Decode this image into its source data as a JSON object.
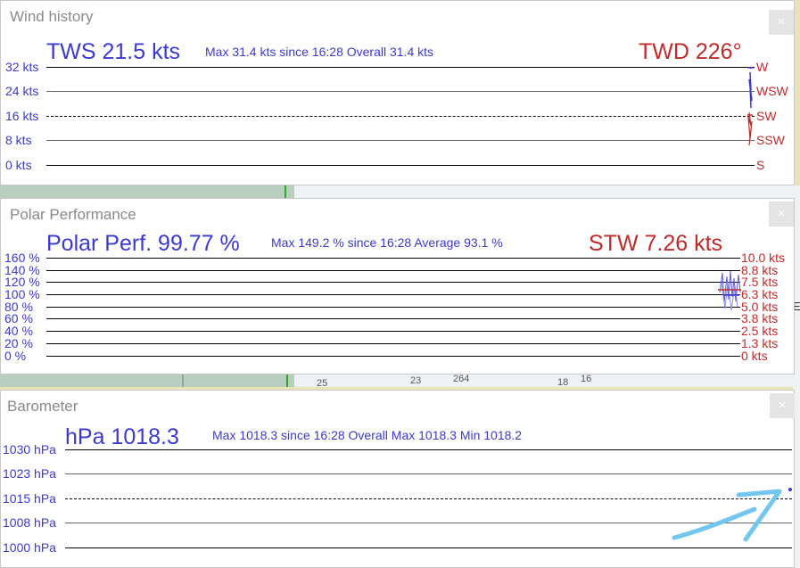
{
  "wind": {
    "title": "Wind history",
    "close_label": "×",
    "tws_label": "TWS 21.5 kts",
    "stats": "Max 31.4 kts since 16:28  Overall 31.4 kts",
    "twd_label": "TWD 226°",
    "left_axis": [
      "32 kts",
      "24 kts",
      "16 kts",
      "8 kts",
      "0 kts"
    ],
    "right_axis": [
      "W",
      "WSW",
      "SW",
      "SSW",
      "S"
    ]
  },
  "polar": {
    "title": "Polar Performance",
    "close_label": "×",
    "perf_label": "Polar Perf. 99.77 %",
    "stats": "Max 149.2 % since 16:28  Average 93.1 %",
    "stw_label": "STW 7.26 kts",
    "left_axis": [
      "160 %",
      "140 %",
      "120 %",
      "100 %",
      "80 %",
      "60 %",
      "40 %",
      "20 %",
      "0 %"
    ],
    "right_axis": [
      "10.0 kts",
      "8.8 kts",
      "7.5 kts",
      "6.3 kts",
      "5.0 kts",
      "3.8 kts",
      "2.5 kts",
      "1.3 kts",
      "0 kts"
    ]
  },
  "baro": {
    "title": "Barometer",
    "close_label": "×",
    "value_label": "hPa 1018.3",
    "stats": "Max 1018.3 since 16:28  Overall Max 1018.3 Min 1018.2",
    "left_axis": [
      "1030 hPa",
      "1023 hPa",
      "1015 hPa",
      "1008 hPa",
      "1000 hPa"
    ]
  },
  "colors": {
    "primary": "#3a3ad0",
    "secondary": "#c22a2a",
    "panel": "#ffffff",
    "map": "#e9e3b8"
  },
  "map_labels": [
    "25",
    "23",
    "264",
    "18",
    "16",
    "E"
  ]
}
